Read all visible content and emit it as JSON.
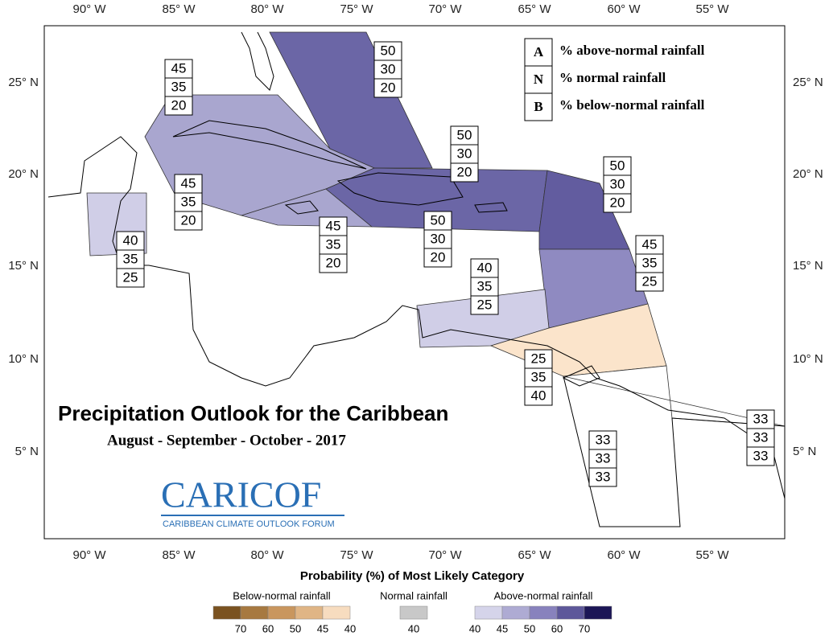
{
  "title": "Precipitation Outlook for the Caribbean",
  "subtitle": "August - September - October - 2017",
  "logo": {
    "name": "CARICOF",
    "tagline": "CARIBBEAN CLIMATE OUTLOOK FORUM"
  },
  "map": {
    "longitude_labels": [
      "90° W",
      "85° W",
      "80° W",
      "75° W",
      "70° W",
      "65° W",
      "60° W",
      "55° W"
    ],
    "latitude_labels": [
      "25° N",
      "20° N",
      "15° N",
      "10° N",
      "5° N"
    ],
    "zone_colors": [
      "#6b66a6",
      "#a9a6cf",
      "#a9a6cf",
      "#6b66a6",
      "#625c9f",
      "#8f8ac1",
      "#d0cee7",
      "#fbe4cb",
      "#d0cee7",
      "#ffffff"
    ],
    "outlook_boxes": [
      {
        "values": [
          50,
          30,
          20
        ]
      },
      {
        "values": [
          45,
          35,
          20
        ]
      },
      {
        "values": [
          50,
          30,
          20
        ]
      },
      {
        "values": [
          50,
          30,
          20
        ]
      },
      {
        "values": [
          45,
          35,
          20
        ]
      },
      {
        "values": [
          45,
          35,
          20
        ]
      },
      {
        "values": [
          50,
          30,
          20
        ]
      },
      {
        "values": [
          40,
          35,
          25
        ]
      },
      {
        "values": [
          45,
          35,
          25
        ]
      },
      {
        "values": [
          40,
          35,
          25
        ]
      },
      {
        "values": [
          25,
          35,
          40
        ]
      },
      {
        "values": [
          33,
          33,
          33
        ]
      },
      {
        "values": [
          33,
          33,
          33
        ]
      }
    ]
  },
  "key": [
    {
      "code": "A",
      "text": "% above-normal rainfall"
    },
    {
      "code": "N",
      "text": "% normal rainfall"
    },
    {
      "code": "B",
      "text": "% below-normal rainfall"
    }
  ],
  "colorbar": {
    "title": "Probability (%) of Most Likely Category",
    "groups": [
      {
        "label": "Below-normal rainfall",
        "colors": [
          "#7a5220",
          "#a77940",
          "#c9965e",
          "#e0b585",
          "#f7dcbf"
        ],
        "ticks": [
          70,
          60,
          50,
          45,
          40
        ]
      },
      {
        "label": "Normal rainfall",
        "colors": [
          "#c8c8c8"
        ],
        "ticks": [
          40
        ]
      },
      {
        "label": "Above-normal rainfall",
        "colors": [
          "#d5d4ea",
          "#aeabd3",
          "#8882bd",
          "#5d579a",
          "#1c1656"
        ],
        "ticks": [
          40,
          45,
          50,
          60,
          70
        ]
      }
    ]
  }
}
